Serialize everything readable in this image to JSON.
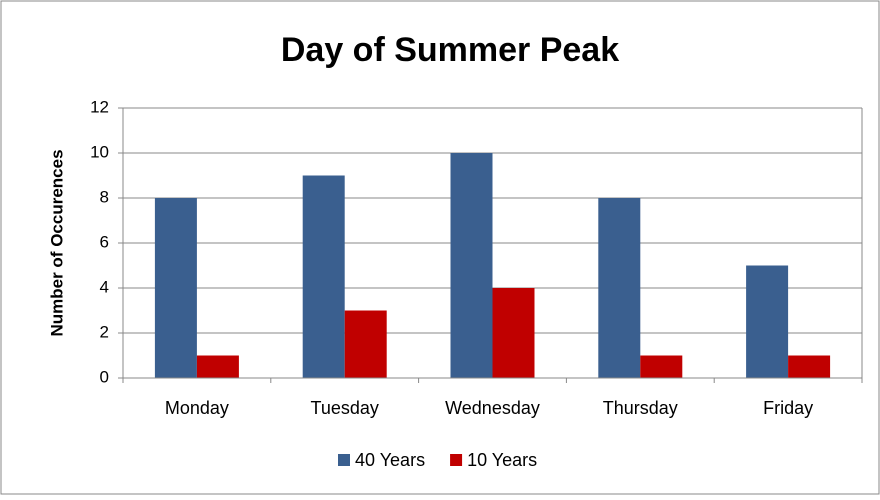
{
  "chart_data": {
    "type": "bar",
    "title": "Day of Summer Peak",
    "y_label": "Number of Occurences",
    "categories": [
      "Monday",
      "Tuesday",
      "Wednesday",
      "Thursday",
      "Friday"
    ],
    "series": [
      {
        "name": "40 Years",
        "color": "#3a5f8f",
        "values": [
          8,
          9,
          10,
          8,
          5
        ]
      },
      {
        "name": "10 Years",
        "color": "#c00000",
        "values": [
          1,
          3,
          4,
          1,
          1
        ]
      }
    ],
    "ylim": [
      0,
      12
    ],
    "yticks": [
      0,
      2,
      4,
      6,
      8,
      10,
      12
    ],
    "grid": true,
    "legend": "bottom"
  }
}
